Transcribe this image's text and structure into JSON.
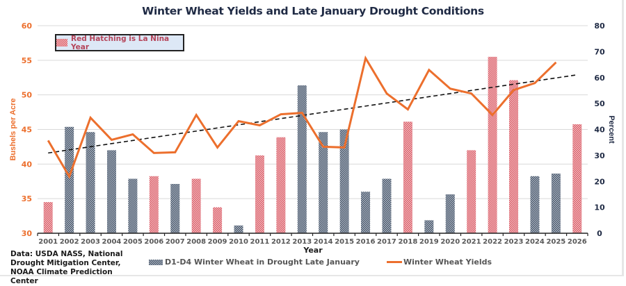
{
  "chart_data": {
    "type": "bar+line",
    "title": "Winter Wheat Yields and Late January Drought Conditions",
    "xlabel": "Year",
    "ylabel_left": "Bushels per Acre",
    "ylabel_right": "Percent",
    "ylim_left": [
      30,
      60
    ],
    "ylim_right": [
      0,
      80
    ],
    "yticks_left": [
      "30",
      "35",
      "40",
      "45",
      "50",
      "55",
      "60"
    ],
    "yticks_right": [
      "0",
      "10",
      "20",
      "30",
      "40",
      "50",
      "60",
      "70",
      "80"
    ],
    "grid": true,
    "categories": [
      "2001",
      "2002",
      "2003",
      "2004",
      "2005",
      "2006",
      "2007",
      "2008",
      "2009",
      "2010",
      "2011",
      "2012",
      "2013",
      "2014",
      "2015",
      "2016",
      "2017",
      "2018",
      "2019",
      "2020",
      "2021",
      "2022",
      "2023",
      "2024",
      "2025",
      "2026"
    ],
    "series": [
      {
        "name": "D1-D4 Winter Wheat in Drought Late January",
        "type": "bar",
        "axis": "right",
        "values": [
          12,
          41,
          39,
          32,
          21,
          22,
          19,
          21,
          10,
          3,
          30,
          37,
          57,
          39,
          40,
          16,
          21,
          43,
          5,
          15,
          32,
          68,
          59,
          22,
          23,
          42
        ],
        "la_nina": [
          true,
          false,
          false,
          false,
          false,
          true,
          false,
          true,
          true,
          false,
          true,
          true,
          false,
          false,
          false,
          false,
          false,
          true,
          false,
          false,
          true,
          true,
          true,
          false,
          false,
          true
        ]
      },
      {
        "name": "Winter Wheat Yields",
        "type": "line",
        "axis": "left",
        "values": [
          43.4,
          38.2,
          46.7,
          43.5,
          44.3,
          41.6,
          41.7,
          47.1,
          42.4,
          46.2,
          45.6,
          47.2,
          47.4,
          42.5,
          42.4,
          55.3,
          50.2,
          47.9,
          53.6,
          50.9,
          50.2,
          47.1,
          50.7,
          51.7,
          54.7,
          null
        ]
      },
      {
        "name": "Yield trend",
        "type": "line-dashed",
        "axis": "left",
        "start": {
          "x": "2001",
          "y": 41.6
        },
        "end": {
          "x": "2026",
          "y": 52.9
        }
      }
    ],
    "annotation": "Red Hatching is La Nina Year",
    "legend": [
      "D1-D4 Winter Wheat in Drought Late January",
      "Winter Wheat Yields"
    ],
    "legend_position": "bottom"
  },
  "colors": {
    "la_nina_bar": "#d9545f",
    "normal_bar": "#3d4a5c",
    "yield_line": "#ec6f2d",
    "left_axis": "#ec6f2d",
    "right_axis": "#1f2a44",
    "trend": "#111111"
  },
  "source_text": "Data: USDA NASS, National Drought Mitigation Center, NOAA Climate Prediction Center"
}
